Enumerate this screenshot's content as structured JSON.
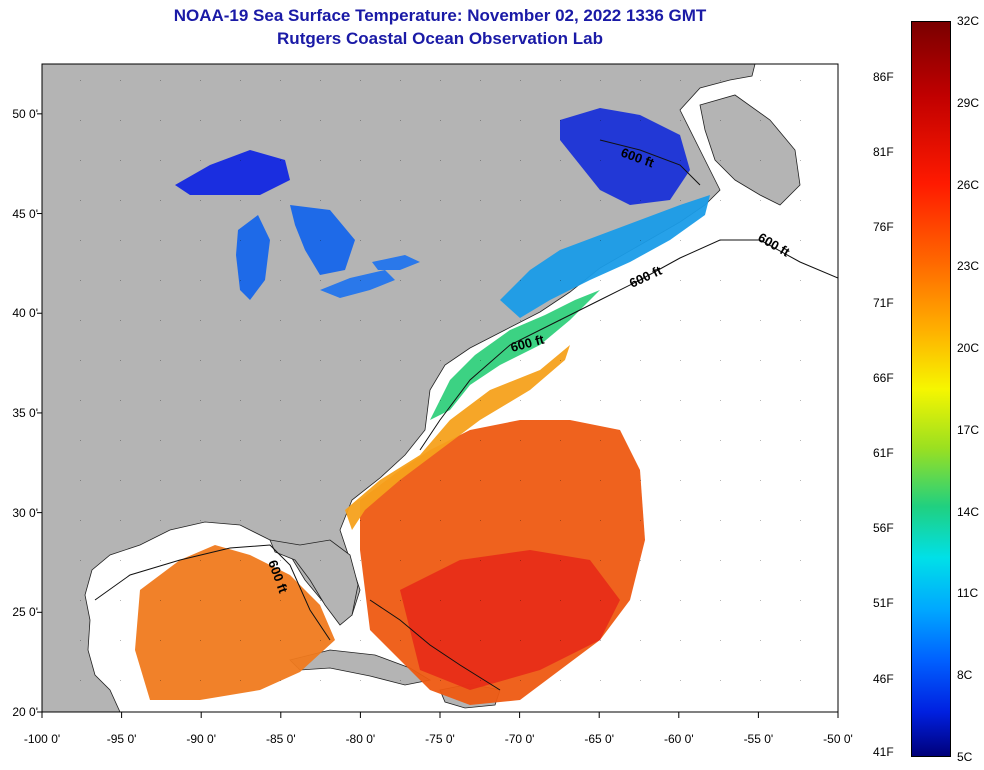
{
  "title": {
    "line1": "NOAA-19 Sea Surface Temperature:  November 02, 2022 1336 GMT",
    "line2": "Rutgers Coastal Ocean Observation Lab"
  },
  "map": {
    "lon_range": [
      -100,
      -50
    ],
    "lat_range": [
      20,
      52.5
    ],
    "lat_ticks": [
      "50 0'",
      "45 0'",
      "40 0'",
      "35 0'",
      "30 0'",
      "25 0'",
      "20 0'"
    ],
    "lon_ticks": [
      "-100 0'",
      "-95 0'",
      "-90 0'",
      "-85 0'",
      "-80 0'",
      "-75 0'",
      "-70 0'",
      "-65 0'",
      "-60 0'",
      "-55 0'",
      "-50 0'"
    ],
    "contour_labels": [
      "600 ft",
      "600 ft",
      "600 ft",
      "600 ft",
      "600 ft"
    ],
    "land_color": "#b4b4b4",
    "nodata_color": "#ffffff"
  },
  "colorbar": {
    "celsius_labels": [
      "32C",
      "29C",
      "26C",
      "23C",
      "20C",
      "17C",
      "14C",
      "11C",
      "8C",
      "5C"
    ],
    "fahrenheit_labels": [
      "86F",
      "81F",
      "76F",
      "71F",
      "66F",
      "61F",
      "56F",
      "51F",
      "46F",
      "41F"
    ],
    "range_c": [
      5,
      32
    ]
  }
}
